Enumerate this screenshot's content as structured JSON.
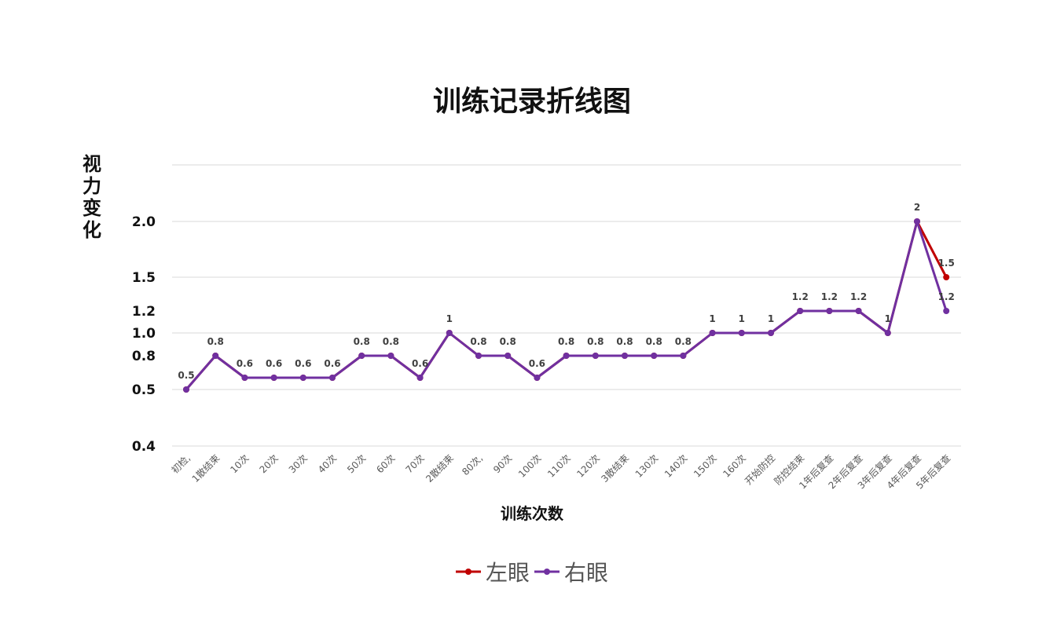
{
  "chart_data": {
    "type": "line",
    "title": "训练记录折线图",
    "xlabel": "训练次数",
    "ylabel": "视力变化",
    "categories": [
      "初检,",
      "1散结束",
      "10次",
      "20次",
      "30次",
      "40次",
      "50次",
      "60次",
      "70次",
      "2散结束",
      "80次,",
      "90次",
      "100次",
      "110次",
      "120次",
      "3散结束",
      "130次",
      "140次",
      "150次",
      "160次",
      "开始防控",
      "防控结束",
      "1年后复查",
      "2年后复查",
      "3年后复查",
      "4年后复查",
      "5年后复查"
    ],
    "y_ticks": [
      "2.0",
      "1.5",
      "1.2",
      "1.0",
      "0.8",
      "0.5",
      "0.4"
    ],
    "series": [
      {
        "name": "左眼",
        "color": "#c00000",
        "values": [
          0.5,
          0.8,
          0.6,
          0.6,
          0.6,
          0.6,
          0.8,
          0.8,
          0.6,
          1,
          0.8,
          0.8,
          0.6,
          0.8,
          0.8,
          0.8,
          0.8,
          0.8,
          1,
          1,
          1,
          1.2,
          1.2,
          1.2,
          1,
          2,
          1.5
        ]
      },
      {
        "name": "右眼",
        "color": "#7030a0",
        "values": [
          0.5,
          0.8,
          0.6,
          0.6,
          0.6,
          0.6,
          0.8,
          0.8,
          0.6,
          1,
          0.8,
          0.8,
          0.6,
          0.8,
          0.8,
          0.8,
          0.8,
          0.8,
          1,
          1,
          1,
          1.2,
          1.2,
          1.2,
          1,
          2,
          1.2
        ]
      }
    ],
    "data_labels": [
      "0.5",
      "0.8",
      "0.6",
      "0.6",
      "0.6",
      "0.6",
      "0.8",
      "0.8",
      "0.6",
      "1",
      "0.8",
      "0.8",
      "0.6",
      "0.8",
      "0.8",
      "0.8",
      "0.8",
      "0.8",
      "1",
      "1",
      "1",
      "1.2",
      "1.2",
      "1.2",
      "1",
      "2",
      "1.5",
      "1.2"
    ],
    "grid": true,
    "legend_position": "bottom"
  }
}
